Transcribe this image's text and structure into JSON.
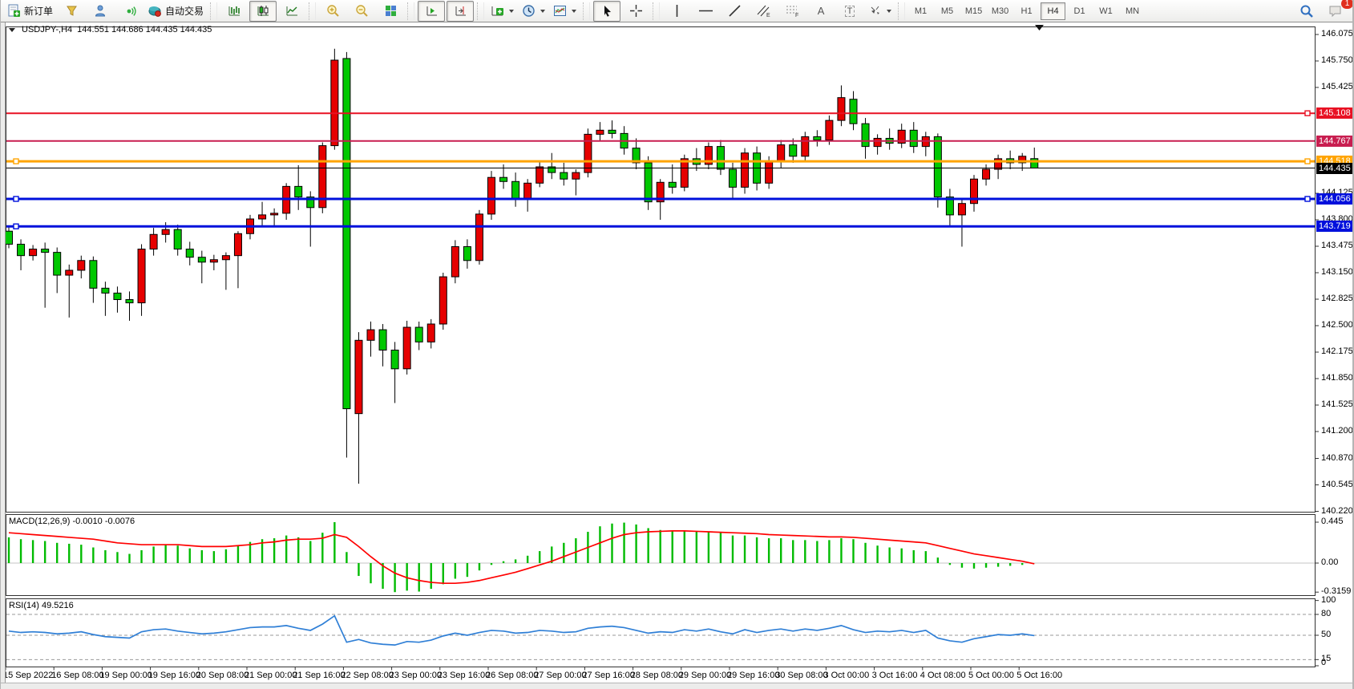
{
  "toolbar": {
    "new_order": "新订单",
    "auto_trading": "自动交易",
    "timeframes": [
      "M1",
      "M5",
      "M15",
      "M30",
      "H1",
      "H4",
      "D1",
      "W1",
      "MN"
    ],
    "active_timeframe": "H4",
    "notification_badge": "1",
    "text_tool_glyph": "A",
    "label_tool_glyph": "T",
    "channel_glyph": "E",
    "fibo_glyph": "F"
  },
  "chart": {
    "symbol_period": "USDJPY-,H4",
    "ohlc_text": "144.551 144.686 144.435 144.435",
    "price_ticks": [
      "146.075",
      "145.750",
      "145.425",
      "144.125",
      "143.800",
      "143.475",
      "143.150",
      "142.825",
      "142.500",
      "142.175",
      "141.850",
      "141.525",
      "141.200",
      "140.870",
      "140.545",
      "140.220"
    ],
    "lines": [
      {
        "price": 145.108,
        "label": "145.108",
        "color": "#e81123",
        "width": 2,
        "handles": [
          "right"
        ]
      },
      {
        "price": 144.767,
        "label": "144.767",
        "color": "#c81e50",
        "width": 2,
        "handles": []
      },
      {
        "price": 144.518,
        "label": "144.518",
        "color": "#ffa400",
        "width": 3,
        "handles": [
          "left",
          "right"
        ]
      },
      {
        "price": 144.435,
        "label": "144.435",
        "color": "#000000",
        "width": 1,
        "handles": []
      },
      {
        "price": 144.056,
        "label": "144.056",
        "color": "#0010dc",
        "width": 3,
        "handles": [
          "left",
          "right"
        ]
      },
      {
        "price": 143.719,
        "label": "143.719",
        "color": "#0010dc",
        "width": 3,
        "handles": [
          "left"
        ]
      }
    ],
    "colors": {
      "up": "#e60000",
      "down": "#00c800",
      "wick": "#000000",
      "macd_hist": "#00bb00",
      "macd_signal": "#ff0000",
      "rsi": "#2f7fd6"
    }
  },
  "macd": {
    "label": "MACD(12,26,9) -0.0010 -0.0076",
    "axis": [
      "0.445",
      "0.00",
      "-0.3159"
    ]
  },
  "rsi": {
    "label": "RSI(14) 49.5216",
    "axis": [
      "100",
      "80",
      "50",
      "15",
      "0"
    ]
  },
  "chart_data": {
    "type": "candlestick",
    "symbol": "USDJPY-",
    "period": "H4",
    "title": "USDJPY-,H4  144.551 144.686 144.435 144.435",
    "last_bar": {
      "open": 144.551,
      "high": 144.686,
      "low": 144.435,
      "close": 144.435
    },
    "y_range": [
      140.22,
      146.075
    ],
    "x_labels": [
      "15 Sep 2022",
      "16 Sep 08:00",
      "19 Sep 00:00",
      "19 Sep 16:00",
      "20 Sep 08:00",
      "21 Sep 00:00",
      "21 Sep 16:00",
      "22 Sep 08:00",
      "23 Sep 00:00",
      "23 Sep 16:00",
      "26 Sep 08:00",
      "27 Sep 00:00",
      "27 Sep 16:00",
      "28 Sep 08:00",
      "29 Sep 00:00",
      "29 Sep 16:00",
      "30 Sep 08:00",
      "3 Oct 00:00",
      "3 Oct 16:00",
      "4 Oct 08:00",
      "5 Oct 00:00",
      "5 Oct 16:00"
    ],
    "bars_per_label": 4,
    "horizontal_lines": [
      145.108,
      144.767,
      144.518,
      144.435,
      144.056,
      143.719
    ],
    "candles_ohlc": [
      [
        143.66,
        143.72,
        143.45,
        143.5
      ],
      [
        143.5,
        143.56,
        143.18,
        143.36
      ],
      [
        143.36,
        143.49,
        143.3,
        143.44
      ],
      [
        143.44,
        143.52,
        142.72,
        143.4
      ],
      [
        143.4,
        143.46,
        142.9,
        143.12
      ],
      [
        143.12,
        143.25,
        142.6,
        143.18
      ],
      [
        143.18,
        143.36,
        143.08,
        143.3
      ],
      [
        143.3,
        143.35,
        142.78,
        142.96
      ],
      [
        142.96,
        143.04,
        142.62,
        142.9
      ],
      [
        142.9,
        142.98,
        142.66,
        142.82
      ],
      [
        142.82,
        142.92,
        142.56,
        142.78
      ],
      [
        142.78,
        143.5,
        142.62,
        143.44
      ],
      [
        143.44,
        143.7,
        143.36,
        143.62
      ],
      [
        143.62,
        143.77,
        143.52,
        143.68
      ],
      [
        143.68,
        143.74,
        143.36,
        143.44
      ],
      [
        143.44,
        143.53,
        143.24,
        143.34
      ],
      [
        143.34,
        143.42,
        143.02,
        143.28
      ],
      [
        143.28,
        143.37,
        143.18,
        143.31
      ],
      [
        143.31,
        143.4,
        142.94,
        143.36
      ],
      [
        143.36,
        143.66,
        142.96,
        143.63
      ],
      [
        143.63,
        143.86,
        143.56,
        143.81
      ],
      [
        143.81,
        144.02,
        143.73,
        143.86
      ],
      [
        143.86,
        143.94,
        143.71,
        143.88
      ],
      [
        143.88,
        144.25,
        143.8,
        144.21
      ],
      [
        144.21,
        144.47,
        143.92,
        144.08
      ],
      [
        144.08,
        144.15,
        143.47,
        143.95
      ],
      [
        143.95,
        144.75,
        143.88,
        144.71
      ],
      [
        144.71,
        145.9,
        144.66,
        145.76
      ],
      [
        145.78,
        145.86,
        140.88,
        141.48
      ],
      [
        141.42,
        142.42,
        140.56,
        142.32
      ],
      [
        142.32,
        142.55,
        142.12,
        142.45
      ],
      [
        142.45,
        142.52,
        142.0,
        142.2
      ],
      [
        142.2,
        142.3,
        141.55,
        141.97
      ],
      [
        141.97,
        142.56,
        141.9,
        142.48
      ],
      [
        142.48,
        142.55,
        142.2,
        142.3
      ],
      [
        142.3,
        142.58,
        142.22,
        142.52
      ],
      [
        142.52,
        143.15,
        142.45,
        143.1
      ],
      [
        143.1,
        143.55,
        143.02,
        143.47
      ],
      [
        143.47,
        143.56,
        143.2,
        143.3
      ],
      [
        143.3,
        143.92,
        143.25,
        143.87
      ],
      [
        143.87,
        144.4,
        143.8,
        144.32
      ],
      [
        144.32,
        144.48,
        144.18,
        144.27
      ],
      [
        144.27,
        144.38,
        143.96,
        144.06
      ],
      [
        144.06,
        144.3,
        143.9,
        144.25
      ],
      [
        144.25,
        144.52,
        144.2,
        144.45
      ],
      [
        144.45,
        144.62,
        144.3,
        144.38
      ],
      [
        144.38,
        144.5,
        144.22,
        144.3
      ],
      [
        144.3,
        144.42,
        144.1,
        144.38
      ],
      [
        144.38,
        144.92,
        144.32,
        144.85
      ],
      [
        144.85,
        145.0,
        144.76,
        144.9
      ],
      [
        144.9,
        145.02,
        144.8,
        144.86
      ],
      [
        144.86,
        144.95,
        144.6,
        144.68
      ],
      [
        144.68,
        144.8,
        144.42,
        144.5
      ],
      [
        144.5,
        144.58,
        143.92,
        144.02
      ],
      [
        144.02,
        144.3,
        143.8,
        144.26
      ],
      [
        144.26,
        144.48,
        144.12,
        144.2
      ],
      [
        144.2,
        144.6,
        144.15,
        144.55
      ],
      [
        144.55,
        144.68,
        144.4,
        144.48
      ],
      [
        144.48,
        144.75,
        144.42,
        144.7
      ],
      [
        144.7,
        144.78,
        144.35,
        144.42
      ],
      [
        144.42,
        144.5,
        144.05,
        144.2
      ],
      [
        144.2,
        144.68,
        144.12,
        144.62
      ],
      [
        144.62,
        144.7,
        144.16,
        144.25
      ],
      [
        144.25,
        144.58,
        144.18,
        144.52
      ],
      [
        144.52,
        144.78,
        144.44,
        144.72
      ],
      [
        144.72,
        144.8,
        144.5,
        144.58
      ],
      [
        144.58,
        144.88,
        144.52,
        144.82
      ],
      [
        144.82,
        144.9,
        144.7,
        144.78
      ],
      [
        144.78,
        145.08,
        144.72,
        145.02
      ],
      [
        145.02,
        145.45,
        144.95,
        145.3
      ],
      [
        145.28,
        145.38,
        144.9,
        144.98
      ],
      [
        144.98,
        145.05,
        144.55,
        144.7
      ],
      [
        144.7,
        144.85,
        144.6,
        144.8
      ],
      [
        144.8,
        144.92,
        144.66,
        144.74
      ],
      [
        144.74,
        144.98,
        144.68,
        144.9
      ],
      [
        144.9,
        145.0,
        144.62,
        144.7
      ],
      [
        144.7,
        144.88,
        144.58,
        144.82
      ],
      [
        144.82,
        144.86,
        143.95,
        144.08
      ],
      [
        144.08,
        144.18,
        143.72,
        143.86
      ],
      [
        143.86,
        144.05,
        143.47,
        144.0
      ],
      [
        144.0,
        144.35,
        143.9,
        144.3
      ],
      [
        144.3,
        144.48,
        144.22,
        144.42
      ],
      [
        144.42,
        144.6,
        144.3,
        144.55
      ],
      [
        144.55,
        144.65,
        144.42,
        144.5
      ],
      [
        144.5,
        144.62,
        144.4,
        144.58
      ],
      [
        144.551,
        144.686,
        144.435,
        144.435
      ]
    ],
    "indicators": [
      {
        "type": "MACD",
        "params": [
          12,
          26,
          9
        ],
        "current": [
          -0.001,
          -0.0076
        ],
        "y_axis": [
          0.445,
          0.0,
          -0.3159
        ],
        "histogram": [
          0.28,
          0.26,
          0.25,
          0.24,
          0.22,
          0.21,
          0.2,
          0.17,
          0.14,
          0.12,
          0.1,
          0.14,
          0.18,
          0.2,
          0.19,
          0.16,
          0.14,
          0.13,
          0.15,
          0.19,
          0.23,
          0.26,
          0.27,
          0.3,
          0.28,
          0.24,
          0.33,
          0.445,
          0.12,
          -0.14,
          -0.22,
          -0.28,
          -0.316,
          -0.3,
          -0.31,
          -0.28,
          -0.23,
          -0.17,
          -0.15,
          -0.08,
          -0.02,
          0.02,
          0.04,
          0.08,
          0.13,
          0.18,
          0.22,
          0.27,
          0.34,
          0.4,
          0.43,
          0.44,
          0.42,
          0.38,
          0.36,
          0.35,
          0.35,
          0.34,
          0.34,
          0.33,
          0.3,
          0.3,
          0.28,
          0.27,
          0.27,
          0.25,
          0.25,
          0.24,
          0.25,
          0.27,
          0.26,
          0.22,
          0.19,
          0.17,
          0.16,
          0.14,
          0.13,
          0.06,
          -0.02,
          -0.05,
          -0.06,
          -0.05,
          -0.04,
          -0.03,
          -0.02,
          -0.001
        ],
        "signal": [
          0.33,
          0.32,
          0.31,
          0.3,
          0.29,
          0.28,
          0.27,
          0.26,
          0.24,
          0.22,
          0.21,
          0.2,
          0.2,
          0.2,
          0.2,
          0.19,
          0.18,
          0.18,
          0.18,
          0.19,
          0.2,
          0.22,
          0.23,
          0.25,
          0.26,
          0.26,
          0.27,
          0.31,
          0.28,
          0.18,
          0.07,
          -0.03,
          -0.11,
          -0.16,
          -0.19,
          -0.21,
          -0.22,
          -0.22,
          -0.21,
          -0.19,
          -0.16,
          -0.13,
          -0.1,
          -0.06,
          -0.02,
          0.02,
          0.07,
          0.12,
          0.17,
          0.22,
          0.27,
          0.31,
          0.33,
          0.34,
          0.345,
          0.35,
          0.35,
          0.345,
          0.34,
          0.335,
          0.33,
          0.325,
          0.32,
          0.31,
          0.305,
          0.3,
          0.295,
          0.29,
          0.285,
          0.285,
          0.28,
          0.27,
          0.26,
          0.25,
          0.24,
          0.23,
          0.22,
          0.19,
          0.16,
          0.13,
          0.1,
          0.08,
          0.06,
          0.04,
          0.02,
          -0.008
        ]
      },
      {
        "type": "RSI",
        "params": [
          14
        ],
        "current": 49.5216,
        "levels": [
          80,
          50,
          15
        ],
        "values": [
          56,
          54,
          55,
          54,
          52,
          53,
          55,
          51,
          48,
          47,
          46,
          55,
          58,
          59,
          56,
          54,
          52,
          53,
          55,
          58,
          61,
          62,
          62,
          64,
          60,
          57,
          66,
          78,
          40,
          44,
          39,
          37,
          36,
          41,
          40,
          43,
          49,
          53,
          50,
          54,
          57,
          56,
          53,
          54,
          57,
          56,
          54,
          55,
          60,
          62,
          63,
          61,
          57,
          53,
          55,
          54,
          58,
          56,
          59,
          55,
          52,
          58,
          54,
          57,
          59,
          56,
          59,
          57,
          60,
          64,
          58,
          54,
          56,
          55,
          57,
          54,
          57,
          46,
          42,
          40,
          45,
          48,
          51,
          50,
          52,
          49.5
        ]
      }
    ]
  }
}
